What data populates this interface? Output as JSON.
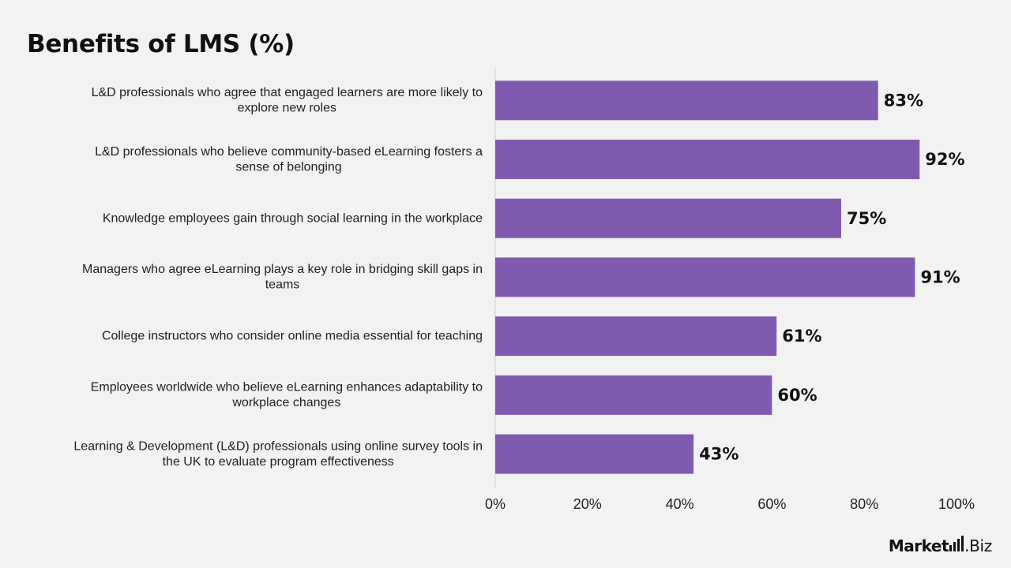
{
  "page": {
    "title": "Benefits of LMS (%)"
  },
  "brand": {
    "name_bold": "Market",
    "name_suffix": ".Biz",
    "icon": "bar-chart-icon"
  },
  "colors": {
    "bar": "#7f5aaf",
    "background": "#f2f2f2",
    "axis": "#d0d0d0"
  },
  "chart_data": {
    "type": "bar",
    "orientation": "horizontal",
    "title": "Benefits of LMS (%)",
    "categories": [
      [
        "L&D professionals who agree that engaged learners are more likely to",
        "explore new roles"
      ],
      [
        "L&D professionals who believe community-based eLearning fosters a",
        "sense of belonging"
      ],
      [
        "Knowledge employees gain through social learning in the workplace"
      ],
      [
        "Managers who agree eLearning plays a key role in bridging skill gaps in",
        "teams"
      ],
      [
        "College instructors who consider online media essential for teaching"
      ],
      [
        "Employees worldwide who believe eLearning enhances adaptability to",
        "workplace changes"
      ],
      [
        "Learning & Development (L&D) professionals using online survey tools in",
        "the UK to evaluate program effectiveness"
      ]
    ],
    "values": [
      83,
      92,
      75,
      91,
      61,
      60,
      43
    ],
    "data_labels": [
      "83%",
      "92%",
      "75%",
      "91%",
      "61%",
      "60%",
      "43%"
    ],
    "xlim": [
      0,
      100
    ],
    "x_ticks": [
      0,
      20,
      40,
      60,
      80,
      100
    ],
    "x_tick_labels": [
      "0%",
      "20%",
      "40%",
      "60%",
      "80%",
      "100%"
    ],
    "xlabel": "",
    "ylabel": "",
    "grid": false,
    "legend": "none"
  }
}
